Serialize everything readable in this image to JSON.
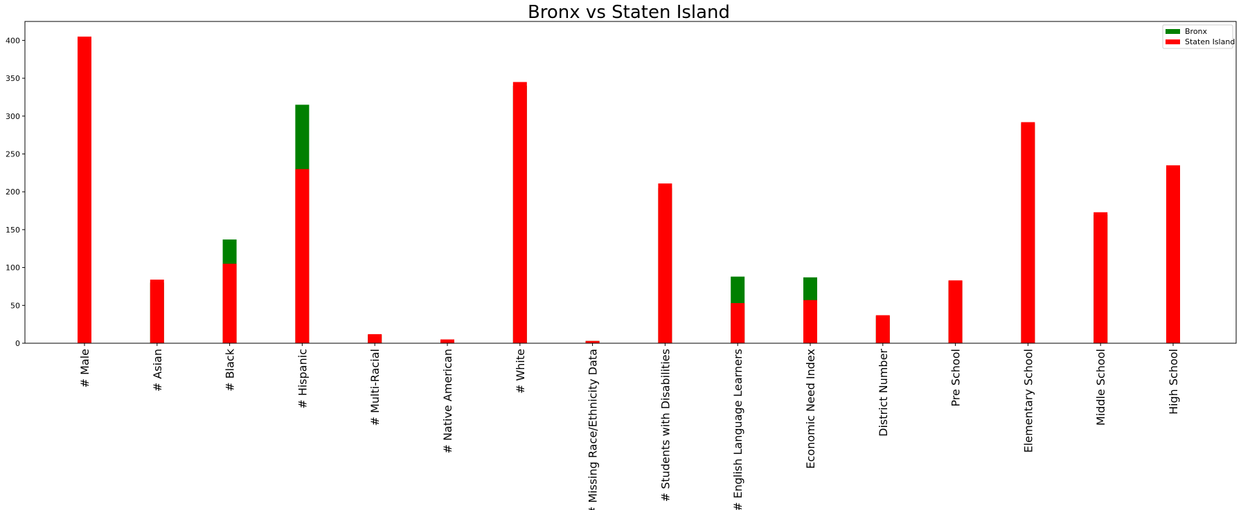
{
  "chart_data": {
    "type": "bar",
    "title": "Bronx vs Staten Island",
    "xlabel": "",
    "ylabel": "",
    "ylim": [
      0,
      425
    ],
    "yticks": [
      0,
      50,
      100,
      150,
      200,
      250,
      300,
      350,
      400
    ],
    "legend_position": "top-right",
    "grid": false,
    "overlap": true,
    "categories": [
      "# Male",
      "# Asian",
      "# Black",
      "# Hispanic",
      "# Multi-Racial",
      "# Native American",
      "# White",
      "# Missing Race/Ethnicity Data",
      "# Students with Disabilities",
      "# English Language Learners",
      "Economic Need Index",
      "District Number",
      "Pre School",
      "Elementary School",
      "Middle School",
      "High School"
    ],
    "series": [
      {
        "name": "Bronx",
        "color": "#008000",
        "values": [
          400,
          80,
          137,
          315,
          11,
          4,
          340,
          3,
          205,
          88,
          87,
          36,
          82,
          290,
          170,
          232
        ]
      },
      {
        "name": "Staten Island",
        "color": "#ff0000",
        "values": [
          405,
          84,
          105,
          230,
          12,
          5,
          345,
          3,
          211,
          53,
          57,
          37,
          83,
          292,
          173,
          235
        ]
      }
    ]
  }
}
